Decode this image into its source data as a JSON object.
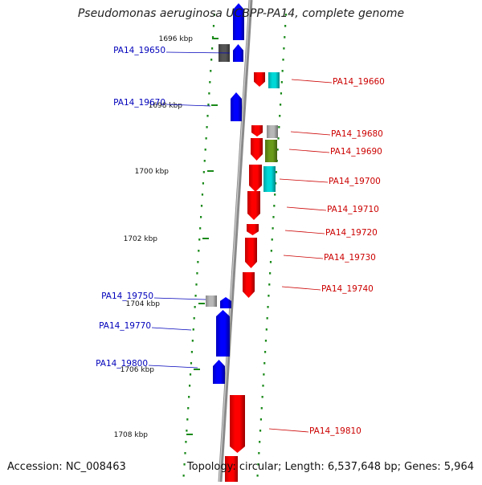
{
  "title": "Pseudomonas aeruginosa UCBPP-PA14, complete genome",
  "footer": {
    "accession": "Accession: NC_008463",
    "summary": "Topology: circular; Length: 6,537,648 bp; Genes: 5,964"
  },
  "colors": {
    "forward_strand": "#ff0000",
    "reverse_strand": "#0000ff",
    "grey_gene": "#b8b8b8",
    "dark_grey_gene": "#555555",
    "cyan_gene": "#00d8d8",
    "olive_gene": "#6a9a1a",
    "axis": "#8a8a8a",
    "tick": "#1a8a1a",
    "forward_label": "#cc0000",
    "reverse_label": "#0000bb"
  },
  "kbp_ticks": [
    "1696 kbp",
    "1698 kbp",
    "1700 kbp",
    "1702 kbp",
    "1704 kbp",
    "1706 kbp",
    "1708 kbp"
  ],
  "reverse_labels": [
    "PA14_19650",
    "PA14_19670",
    "PA14_19750",
    "PA14_19770",
    "PA14_19800"
  ],
  "forward_labels": [
    "PA14_19660",
    "PA14_19680",
    "PA14_19690",
    "PA14_19700",
    "PA14_19710",
    "PA14_19720",
    "PA14_19730",
    "PA14_19740",
    "PA14_19810"
  ]
}
